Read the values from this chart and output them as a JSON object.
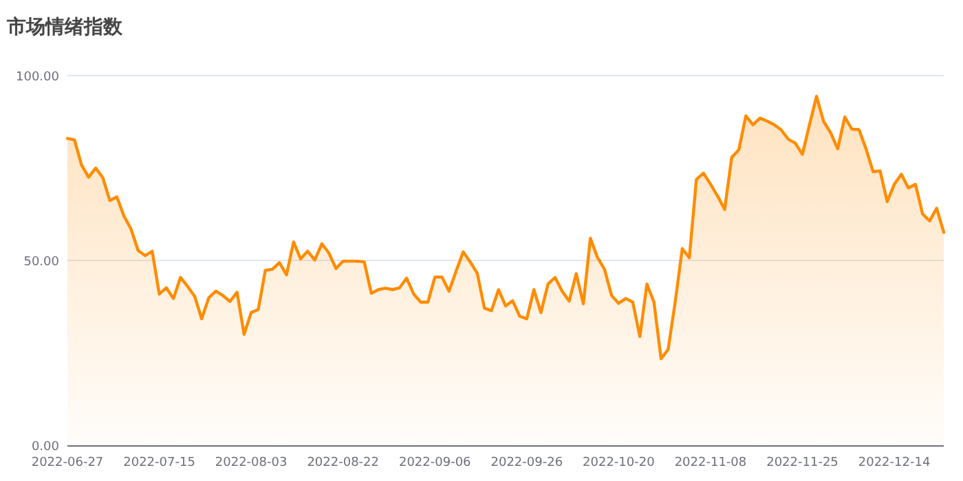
{
  "chart_data": {
    "type": "area",
    "title": "市场情绪指数",
    "categories": [
      "2022-06-27",
      null,
      null,
      null,
      null,
      null,
      null,
      null,
      null,
      null,
      null,
      null,
      null,
      "2022-07-15",
      null,
      null,
      null,
      null,
      null,
      null,
      null,
      null,
      null,
      null,
      null,
      null,
      "2022-08-03",
      null,
      null,
      null,
      null,
      null,
      null,
      null,
      null,
      null,
      null,
      null,
      null,
      "2022-08-22",
      null,
      null,
      null,
      null,
      null,
      null,
      null,
      null,
      null,
      null,
      null,
      null,
      "2022-09-06",
      null,
      null,
      null,
      null,
      null,
      null,
      null,
      null,
      null,
      null,
      null,
      null,
      "2022-09-26",
      null,
      null,
      null,
      null,
      null,
      null,
      null,
      null,
      null,
      null,
      null,
      null,
      "2022-10-20",
      null,
      null,
      null,
      null,
      null,
      null,
      null,
      null,
      null,
      null,
      null,
      null,
      "2022-11-08",
      null,
      null,
      null,
      null,
      null,
      null,
      null,
      null,
      null,
      null,
      null,
      null,
      "2022-11-25",
      null,
      null,
      null,
      null,
      null,
      null,
      null,
      null,
      null,
      null,
      null,
      null,
      "2022-12-14",
      null,
      null,
      null,
      null,
      null,
      null,
      null
    ],
    "values": [
      83.0,
      82.6,
      75.8,
      72.5,
      75.0,
      72.4,
      66.2,
      67.2,
      62.0,
      58.5,
      52.7,
      51.3,
      52.5,
      40.9,
      42.6,
      39.7,
      45.4,
      43.0,
      40.3,
      34.2,
      39.9,
      41.7,
      40.5,
      38.9,
      41.4,
      30.0,
      35.9,
      36.7,
      47.3,
      47.6,
      49.4,
      46.1,
      55.0,
      50.4,
      52.5,
      50.1,
      54.5,
      52.0,
      47.8,
      49.8,
      49.8,
      49.8,
      49.6,
      41.1,
      42.1,
      42.5,
      42.1,
      42.6,
      45.2,
      40.9,
      38.7,
      38.7,
      45.5,
      45.5,
      41.7,
      47.1,
      52.3,
      49.6,
      46.5,
      37.1,
      36.4,
      42.1,
      37.7,
      39.1,
      34.9,
      34.2,
      42.1,
      35.9,
      43.6,
      45.4,
      41.7,
      39.0,
      46.4,
      38.3,
      56.0,
      50.8,
      47.6,
      40.5,
      38.4,
      39.7,
      38.7,
      29.4,
      43.6,
      38.7,
      23.4,
      25.9,
      38.7,
      53.2,
      50.7,
      71.9,
      73.6,
      70.6,
      67.4,
      63.8,
      77.9,
      79.9,
      89.1,
      86.7,
      88.5,
      87.7,
      86.7,
      85.3,
      82.8,
      81.7,
      78.7,
      86.7,
      94.4,
      87.6,
      84.5,
      80.2,
      88.8,
      85.5,
      85.4,
      80.2,
      74.0,
      74.2,
      65.9,
      70.6,
      73.3,
      69.6,
      70.6,
      62.6,
      60.7,
      64.1,
      57.6
    ],
    "color": "#ff8c00",
    "ylim": [
      0,
      100
    ],
    "yticks": [
      {
        "value": 0,
        "label": "0.00"
      },
      {
        "value": 50,
        "label": "50.00"
      },
      {
        "value": 100,
        "label": "100.00"
      }
    ],
    "grid": "y"
  }
}
